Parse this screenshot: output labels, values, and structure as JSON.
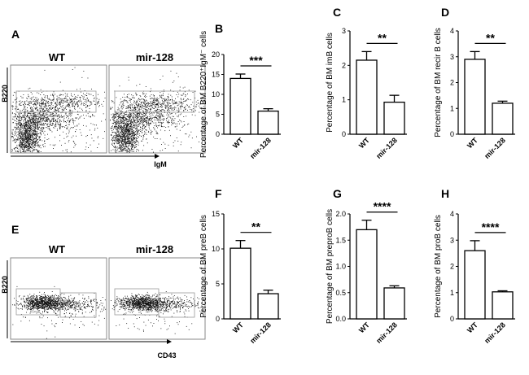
{
  "figure": {
    "panels": {
      "A": {
        "letter": "A",
        "groups": [
          "WT",
          "mir-128"
        ],
        "ylabel": "B220",
        "xlabel": "IgM"
      },
      "E": {
        "letter": "E",
        "groups": [
          "WT",
          "mir-128"
        ],
        "ylabel": "B220",
        "xlabel": "CD43"
      }
    }
  },
  "chart_data": [
    {
      "id": "B",
      "letter": "B",
      "type": "bar",
      "categories": [
        "WT",
        "mir-128"
      ],
      "values": [
        14.0,
        5.8
      ],
      "errors": [
        1.1,
        0.6
      ],
      "ylabel": "Percentage of BM B220⁺IgM⁻ cells",
      "ylim": [
        0,
        20
      ],
      "yticks": [
        "0",
        "5",
        "10",
        "15",
        "20"
      ],
      "significance": "***"
    },
    {
      "id": "C",
      "letter": "C",
      "type": "bar",
      "categories": [
        "WT",
        "mir-128"
      ],
      "values": [
        2.15,
        0.93
      ],
      "errors": [
        0.25,
        0.2
      ],
      "ylabel": "Percentage of BM imB cells",
      "ylim": [
        0,
        3
      ],
      "yticks": [
        "0",
        "1",
        "2",
        "3"
      ],
      "significance": "**"
    },
    {
      "id": "D",
      "letter": "D",
      "type": "bar",
      "categories": [
        "WT",
        "mir-128"
      ],
      "values": [
        2.9,
        1.2
      ],
      "errors": [
        0.3,
        0.08
      ],
      "ylabel": "Percentage of BM recir B cells",
      "ylim": [
        0,
        4
      ],
      "yticks": [
        "0",
        "1",
        "2",
        "3",
        "4"
      ],
      "significance": "**"
    },
    {
      "id": "F",
      "letter": "F",
      "type": "bar",
      "categories": [
        "WT",
        "mir-128"
      ],
      "values": [
        10.1,
        3.6
      ],
      "errors": [
        1.1,
        0.5
      ],
      "ylabel": "Percentage of BM preB cells",
      "ylim": [
        0,
        15
      ],
      "yticks": [
        "0",
        "5",
        "10",
        "15"
      ],
      "significance": "**"
    },
    {
      "id": "G",
      "letter": "G",
      "type": "bar",
      "categories": [
        "WT",
        "mir-128"
      ],
      "values": [
        1.7,
        0.59
      ],
      "errors": [
        0.18,
        0.04
      ],
      "ylabel": "Percentage of BM preproB cells",
      "ylim": [
        0,
        2.0
      ],
      "yticks": [
        "0.0",
        "0.5",
        "1.0",
        "1.5",
        "2.0"
      ],
      "significance": "****"
    },
    {
      "id": "H",
      "letter": "H",
      "type": "bar",
      "categories": [
        "WT",
        "mir-128"
      ],
      "values": [
        2.6,
        1.03
      ],
      "errors": [
        0.38,
        0.04
      ],
      "ylabel": "Percentage of BM proB cells",
      "ylim": [
        0,
        4
      ],
      "yticks": [
        "0",
        "1",
        "2",
        "3",
        "4"
      ],
      "significance": "****"
    }
  ]
}
